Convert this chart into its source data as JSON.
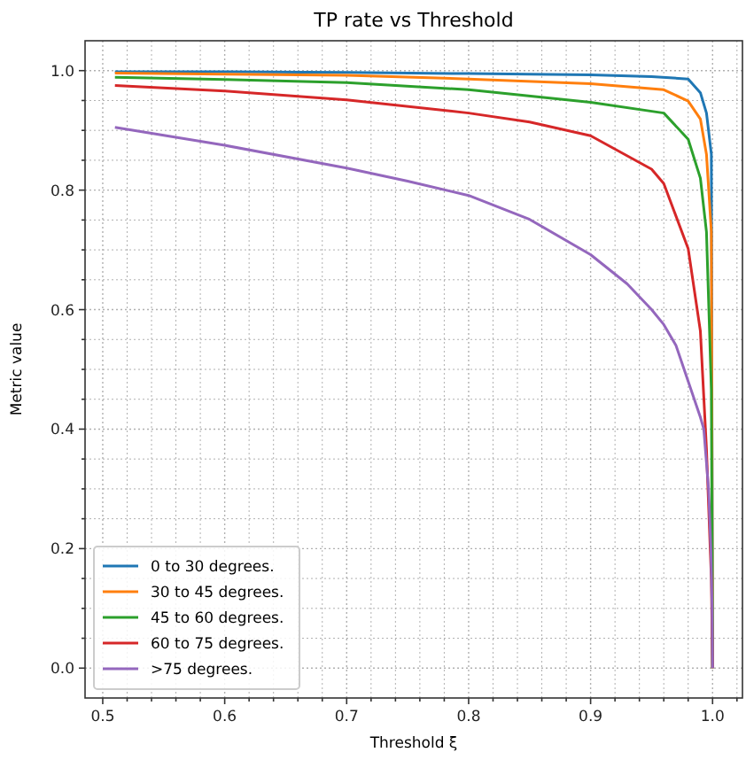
{
  "chart_data": {
    "type": "line",
    "title": "TP rate vs Threshold",
    "xlabel": "Threshold ξ",
    "ylabel": "Metric value",
    "xlim": [
      0.4855,
      1.0245
    ],
    "ylim": [
      -0.05,
      1.05
    ],
    "xticks": [
      {
        "value": 0.5,
        "label": "0.5"
      },
      {
        "value": 0.52,
        "label": null
      },
      {
        "value": 0.54,
        "label": null
      },
      {
        "value": 0.56,
        "label": null
      },
      {
        "value": 0.58,
        "label": null
      },
      {
        "value": 0.6,
        "label": "0.6"
      },
      {
        "value": 0.62,
        "label": null
      },
      {
        "value": 0.64,
        "label": null
      },
      {
        "value": 0.66,
        "label": null
      },
      {
        "value": 0.68,
        "label": null
      },
      {
        "value": 0.7,
        "label": "0.7"
      },
      {
        "value": 0.72,
        "label": null
      },
      {
        "value": 0.74,
        "label": null
      },
      {
        "value": 0.76,
        "label": null
      },
      {
        "value": 0.78,
        "label": null
      },
      {
        "value": 0.8,
        "label": "0.8"
      },
      {
        "value": 0.82,
        "label": null
      },
      {
        "value": 0.84,
        "label": null
      },
      {
        "value": 0.86,
        "label": null
      },
      {
        "value": 0.88,
        "label": null
      },
      {
        "value": 0.9,
        "label": "0.9"
      },
      {
        "value": 0.92,
        "label": null
      },
      {
        "value": 0.94,
        "label": null
      },
      {
        "value": 0.96,
        "label": null
      },
      {
        "value": 0.98,
        "label": null
      },
      {
        "value": 1.0,
        "label": "1.0"
      },
      {
        "value": 1.02,
        "label": null
      }
    ],
    "yticks": [
      {
        "value": 0.0,
        "label": "0.0"
      },
      {
        "value": 0.05,
        "label": null
      },
      {
        "value": 0.1,
        "label": null
      },
      {
        "value": 0.15,
        "label": null
      },
      {
        "value": 0.2,
        "label": "0.2"
      },
      {
        "value": 0.25,
        "label": null
      },
      {
        "value": 0.3,
        "label": null
      },
      {
        "value": 0.35,
        "label": null
      },
      {
        "value": 0.4,
        "label": "0.4"
      },
      {
        "value": 0.45,
        "label": null
      },
      {
        "value": 0.5,
        "label": null
      },
      {
        "value": 0.55,
        "label": null
      },
      {
        "value": 0.6,
        "label": "0.6"
      },
      {
        "value": 0.65,
        "label": null
      },
      {
        "value": 0.7,
        "label": null
      },
      {
        "value": 0.75,
        "label": null
      },
      {
        "value": 0.8,
        "label": "0.8"
      },
      {
        "value": 0.85,
        "label": null
      },
      {
        "value": 0.9,
        "label": null
      },
      {
        "value": 0.95,
        "label": null
      },
      {
        "value": 1.0,
        "label": "1.0"
      }
    ],
    "grid": true,
    "legend": "bottom left",
    "marker": "none",
    "line_style": "solid",
    "series": [
      {
        "name": "0 to 30 degrees.",
        "color": "#1f77b4",
        "x": [
          0.51,
          0.6,
          0.7,
          0.8,
          0.9,
          0.95,
          0.98,
          0.99,
          0.995,
          0.999,
          1.0
        ],
        "values": [
          0.998,
          0.998,
          0.997,
          0.995,
          0.993,
          0.99,
          0.986,
          0.963,
          0.929,
          0.86,
          0
        ]
      },
      {
        "name": "30 to 45 degrees.",
        "color": "#ff7f0e",
        "x": [
          0.51,
          0.6,
          0.7,
          0.8,
          0.9,
          0.96,
          0.98,
          0.99,
          0.995,
          0.999,
          1.0
        ],
        "values": [
          0.996,
          0.994,
          0.992,
          0.986,
          0.978,
          0.968,
          0.949,
          0.919,
          0.86,
          0.73,
          0
        ]
      },
      {
        "name": "45 to 60 degrees.",
        "color": "#2ca02c",
        "x": [
          0.51,
          0.6,
          0.7,
          0.8,
          0.9,
          0.96,
          0.98,
          0.99,
          0.995,
          0.999,
          1.0
        ],
        "values": [
          0.989,
          0.985,
          0.98,
          0.968,
          0.947,
          0.929,
          0.885,
          0.82,
          0.73,
          0.466,
          0
        ]
      },
      {
        "name": "60 to 75 degrees.",
        "color": "#d62728",
        "x": [
          0.51,
          0.6,
          0.7,
          0.8,
          0.85,
          0.9,
          0.95,
          0.96,
          0.98,
          0.99,
          0.995,
          0.999,
          1.0
        ],
        "values": [
          0.975,
          0.966,
          0.951,
          0.929,
          0.914,
          0.891,
          0.835,
          0.811,
          0.702,
          0.564,
          0.367,
          0.15,
          0
        ]
      },
      {
        "name": ">75 degrees.",
        "color": "#9467bd",
        "x": [
          0.51,
          0.6,
          0.7,
          0.75,
          0.8,
          0.85,
          0.9,
          0.93,
          0.95,
          0.96,
          0.97,
          0.98,
          0.99,
          0.9928,
          0.9967,
          0.9986,
          0.9996,
          1.0
        ],
        "values": [
          0.905,
          0.875,
          0.837,
          0.815,
          0.791,
          0.751,
          0.692,
          0.643,
          0.6,
          0.575,
          0.54,
          0.48,
          0.42,
          0.4,
          0.3,
          0.2,
          0.1,
          0
        ]
      }
    ]
  }
}
